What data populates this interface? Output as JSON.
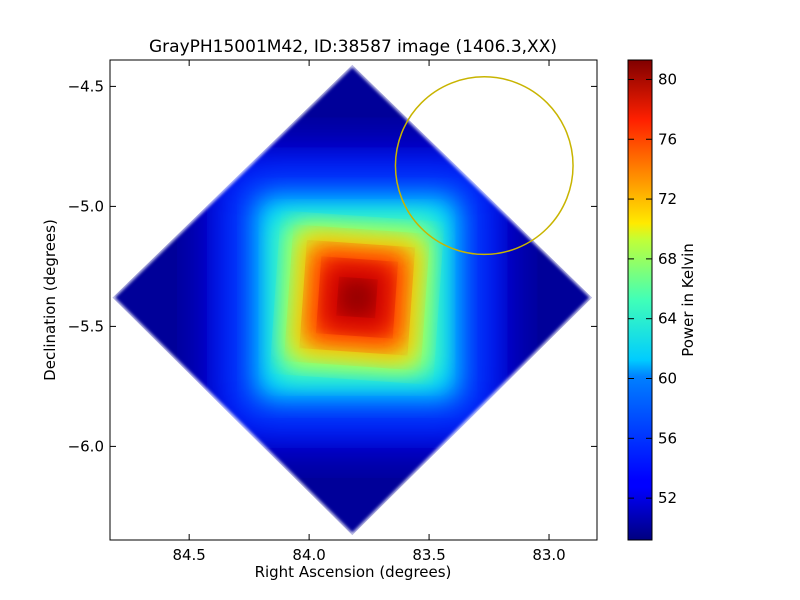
{
  "chart_data": {
    "type": "heatmap",
    "title": "GrayPH15001M42, ID:38587 image (1406.3,XX)",
    "xlabel": "Right Ascension (degrees)",
    "ylabel": "Declination (degrees)",
    "xlim": [
      84.83,
      82.8
    ],
    "ylim": [
      -6.39,
      -4.39
    ],
    "x_ticks": [
      84.5,
      84.0,
      83.5,
      83.0
    ],
    "x_tick_labels": [
      "84.5",
      "84.0",
      "83.5",
      "83.0"
    ],
    "y_ticks": [
      -4.5,
      -5.0,
      -5.5,
      -6.0
    ],
    "y_tick_labels": [
      "−4.5",
      "−5.0",
      "−5.5",
      "−6.0"
    ],
    "colorbar": {
      "label": "Power in Kelvin",
      "range": [
        49.2,
        81.3
      ],
      "ticks": [
        52,
        56,
        60,
        64,
        68,
        72,
        76,
        80
      ],
      "tick_labels": [
        "52",
        "56",
        "60",
        "64",
        "68",
        "72",
        "76",
        "80"
      ],
      "colormap": "jet"
    },
    "field": {
      "shape": "diamond",
      "corners": [
        [
          83.82,
          -4.41
        ],
        [
          84.82,
          -5.38
        ],
        [
          83.82,
          -6.37
        ],
        [
          82.82,
          -5.38
        ]
      ],
      "peak": {
        "ra": 83.8,
        "dec": -5.38,
        "value": 81
      },
      "background_value": 50
    },
    "annotation_circle": {
      "ra": 83.27,
      "dec": -4.83,
      "radius_deg": 0.37,
      "color": "#c8b400"
    },
    "grid": false
  }
}
